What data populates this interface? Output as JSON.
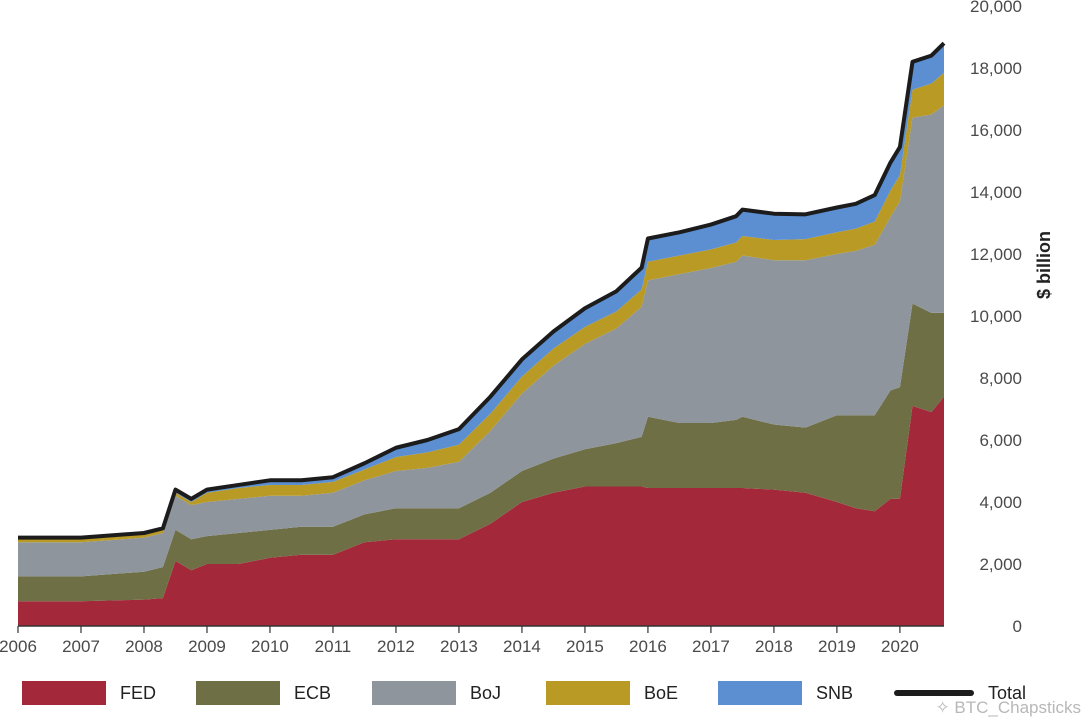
{
  "chart_data": {
    "type": "area",
    "stacked": true,
    "xlabel": "",
    "ylabel": "$ billion",
    "x_ticks": [
      "2006",
      "2007",
      "2008",
      "2009",
      "2010",
      "2011",
      "2012",
      "2013",
      "2014",
      "2015",
      "2016",
      "2017",
      "2018",
      "2019",
      "2020"
    ],
    "y_ticks": [
      "0",
      "2,000",
      "4,000",
      "6,000",
      "8,000",
      "10,000",
      "12,000",
      "14,000",
      "16,000",
      "18,000",
      "20,000"
    ],
    "xlim": [
      2006.0,
      2020.7
    ],
    "ylim": [
      0,
      20000
    ],
    "y_axis_position": "right",
    "grid": false,
    "legend_position": "bottom",
    "x": [
      2006.0,
      2007.0,
      2008.0,
      2008.3,
      2008.5,
      2008.75,
      2009.0,
      2009.5,
      2010.0,
      2010.5,
      2011.0,
      2011.5,
      2012.0,
      2012.5,
      2013.0,
      2013.5,
      2014.0,
      2014.5,
      2015.0,
      2015.5,
      2015.9,
      2016.0,
      2016.5,
      2017.0,
      2017.4,
      2017.5,
      2018.0,
      2018.5,
      2019.0,
      2019.3,
      2019.6,
      2019.85,
      2020.0,
      2020.2,
      2020.5,
      2020.7
    ],
    "series": [
      {
        "name": "FED",
        "color": "#a3283a",
        "values": [
          800,
          800,
          850,
          900,
          2100,
          1800,
          2000,
          2000,
          2200,
          2300,
          2300,
          2700,
          2800,
          2800,
          2800,
          3300,
          4000,
          4300,
          4500,
          4500,
          4500,
          4450,
          4450,
          4450,
          4450,
          4450,
          4400,
          4300,
          4000,
          3800,
          3700,
          4100,
          4100,
          7100,
          6900,
          7400
        ]
      },
      {
        "name": "ECB",
        "color": "#6f6f46",
        "values": [
          800,
          800,
          900,
          1000,
          1000,
          1000,
          900,
          1000,
          900,
          900,
          900,
          900,
          1000,
          1000,
          1000,
          1000,
          1000,
          1100,
          1200,
          1400,
          1600,
          2300,
          2100,
          2100,
          2200,
          2300,
          2100,
          2100,
          2800,
          3000,
          3100,
          3500,
          3600,
          3300,
          3200,
          2700
        ]
      },
      {
        "name": "BoJ",
        "color": "#8e959c",
        "values": [
          1100,
          1100,
          1100,
          1100,
          1100,
          1100,
          1100,
          1100,
          1100,
          1000,
          1100,
          1100,
          1200,
          1300,
          1500,
          2000,
          2500,
          3000,
          3400,
          3700,
          4200,
          4400,
          4800,
          5000,
          5100,
          5200,
          5300,
          5400,
          5200,
          5300,
          5500,
          5600,
          6000,
          6000,
          6400,
          6700
        ]
      },
      {
        "name": "BoE",
        "color": "#b89a25",
        "values": [
          100,
          100,
          100,
          100,
          100,
          100,
          300,
          350,
          350,
          350,
          350,
          350,
          450,
          500,
          550,
          550,
          550,
          550,
          550,
          550,
          560,
          600,
          600,
          600,
          620,
          630,
          650,
          680,
          700,
          720,
          750,
          850,
          850,
          900,
          1000,
          1050
        ]
      },
      {
        "name": "SNB",
        "color": "#5b8fd2",
        "values": [
          50,
          50,
          50,
          50,
          100,
          100,
          100,
          100,
          150,
          150,
          150,
          200,
          300,
          400,
          500,
          550,
          550,
          550,
          600,
          650,
          700,
          750,
          750,
          800,
          850,
          850,
          850,
          800,
          800,
          800,
          850,
          900,
          900,
          900,
          900,
          950
        ]
      },
      {
        "name": "Total",
        "type": "line",
        "color": "#1c1c1c",
        "values": [
          2850,
          2850,
          3000,
          3150,
          4400,
          4100,
          4400,
          4550,
          4700,
          4700,
          4800,
          5250,
          5750,
          6000,
          6350,
          7400,
          8600,
          9500,
          10250,
          10800,
          11560,
          12500,
          12700,
          12950,
          13220,
          13430,
          13300,
          13280,
          13500,
          13620,
          13900,
          14950,
          15450,
          18200,
          18400,
          18800
        ]
      }
    ]
  },
  "watermark": "✧ BTC_Chapsticks"
}
